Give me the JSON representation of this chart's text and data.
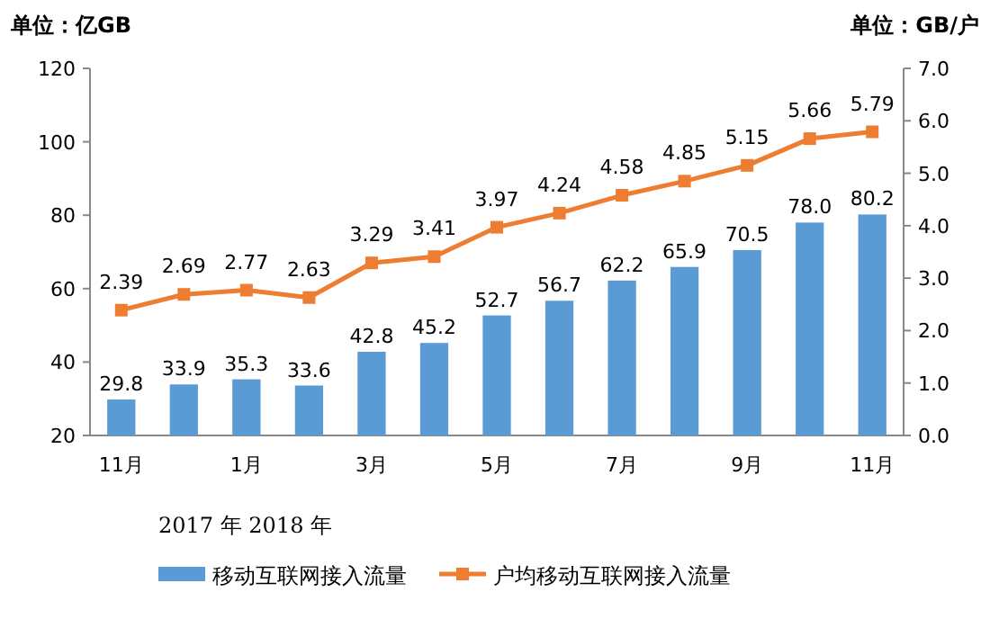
{
  "chart_data": {
    "type": "bar",
    "ylabel": "单位：亿GB",
    "y2label": "单位：GB/户",
    "categories": [
      "11月",
      null,
      "1月",
      null,
      "3月",
      null,
      "5月",
      null,
      "7月",
      null,
      "9月",
      null,
      "11月"
    ],
    "series": [
      {
        "name": "移动互联网接入流量",
        "color": "#5b9bd5",
        "values": [
          29.8,
          33.9,
          35.3,
          33.6,
          42.8,
          45.2,
          52.7,
          56.7,
          62.2,
          65.9,
          70.5,
          78.0,
          80.2
        ],
        "value_labels": [
          "29.8",
          "33.9",
          "35.3",
          "33.6",
          "42.8",
          "45.2",
          "52.7",
          "56.7",
          "62.2",
          "65.9",
          "70.5",
          "78.0",
          "80.2"
        ]
      },
      {
        "name": "户均移动互联网接入流量",
        "type": "line",
        "axis": "y2",
        "color": "#ed7d31",
        "values": [
          2.39,
          2.69,
          2.77,
          2.63,
          3.29,
          3.41,
          3.97,
          4.24,
          4.58,
          4.85,
          5.15,
          5.66,
          5.79
        ],
        "value_labels": [
          "2.39",
          "2.69",
          "2.77",
          "2.63",
          "3.29",
          "3.41",
          "3.97",
          "4.24",
          "4.58",
          "4.85",
          "5.15",
          "5.66",
          "5.79"
        ]
      }
    ],
    "ylim": [
      20,
      120
    ],
    "yticks": [
      20,
      40,
      60,
      80,
      100,
      120
    ],
    "y2lim": [
      0,
      7
    ],
    "y2ticks": [
      {
        "value": 0,
        "label": "0.0"
      },
      {
        "value": 1,
        "label": "1.0"
      },
      {
        "value": 2,
        "label": "2.0"
      },
      {
        "value": 3,
        "label": "3.0"
      },
      {
        "value": 4,
        "label": "4.0"
      },
      {
        "value": 5,
        "label": "5.0"
      },
      {
        "value": 6,
        "label": "6.0"
      },
      {
        "value": 7,
        "label": "7.0"
      }
    ],
    "marker": "square",
    "line_style": "solid",
    "legend": "bottom",
    "grid": false,
    "annotations": [
      "2017 年 2018 年"
    ]
  }
}
